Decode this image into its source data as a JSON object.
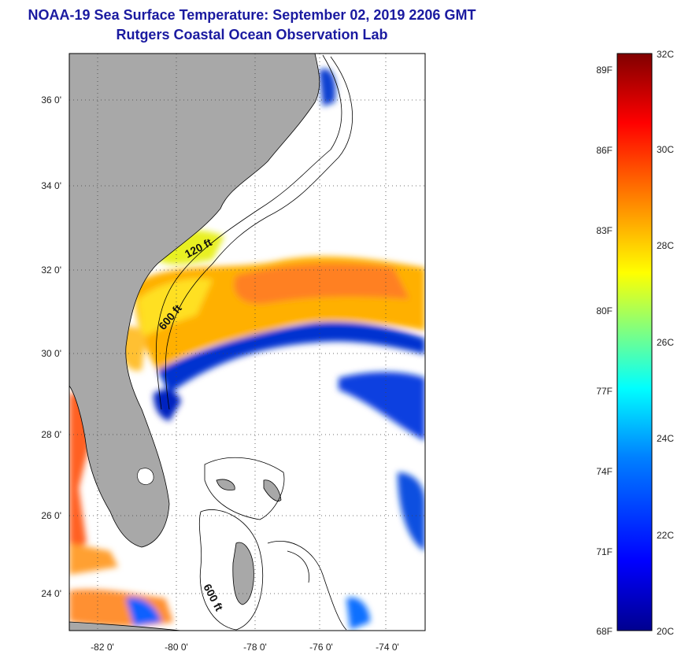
{
  "header": {
    "title": "NOAA-19 Sea Surface Temperature:  September 02, 2019 2206 GMT",
    "subtitle": "Rutgers Coastal Ocean Observation Lab"
  },
  "map": {
    "lat_labels": [
      "36 0'",
      "34 0'",
      "32 0'",
      "30 0'",
      "28 0'",
      "26 0'",
      "24 0'"
    ],
    "lon_labels": [
      "-82 0'",
      "-80 0'",
      "-78 0'",
      "-76 0'",
      "-74 0'"
    ],
    "contour_labels": [
      "120 ft",
      "600 ft",
      "600 ft"
    ],
    "colors": {
      "land": "#a8a8a8",
      "ocean_nodata": "#ffffff",
      "coast": "#000000"
    }
  },
  "colorbar": {
    "celsius_labels": [
      "32C",
      "30C",
      "28C",
      "26C",
      "24C",
      "22C",
      "20C"
    ],
    "fahrenheit_labels": [
      "89F",
      "86F",
      "83F",
      "80F",
      "77F",
      "74F",
      "71F",
      "68F"
    ],
    "colors": [
      "#00008f",
      "#0000ff",
      "#0080ff",
      "#00ffff",
      "#80ff80",
      "#ffff00",
      "#ff8000",
      "#ff0000",
      "#800000"
    ]
  }
}
